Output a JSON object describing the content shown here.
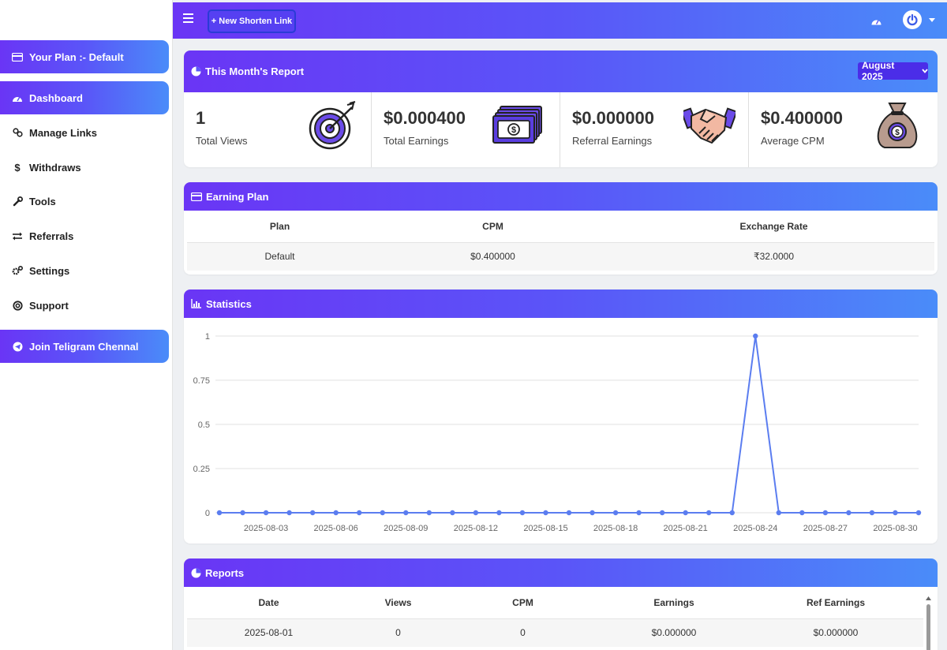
{
  "sidebar": {
    "plan_label": "Your Plan :- Default",
    "items": [
      {
        "label": "Dashboard",
        "icon": "gauge-icon",
        "active": true
      },
      {
        "label": "Manage Links",
        "icon": "link-icon"
      },
      {
        "label": "Withdraws",
        "icon": "dollar-icon"
      },
      {
        "label": "Tools",
        "icon": "wrench-icon"
      },
      {
        "label": "Referrals",
        "icon": "exchange-icon"
      },
      {
        "label": "Settings",
        "icon": "gears-icon"
      },
      {
        "label": "Support",
        "icon": "lifebuoy-icon"
      }
    ],
    "telegram_label": "Join Teligram Chennal"
  },
  "topbar": {
    "new_link_label": "+ New Shorten Link"
  },
  "report": {
    "title": "This Month's Report",
    "month": "August 2025",
    "stats": [
      {
        "value": "1",
        "label": "Total Views",
        "icon": "target-icon"
      },
      {
        "value": "$0.000400",
        "label": "Total Earnings",
        "icon": "cash-stack-icon"
      },
      {
        "value": "$0.000000",
        "label": "Referral Earnings",
        "icon": "handshake-icon"
      },
      {
        "value": "$0.400000",
        "label": "Average CPM",
        "icon": "money-bag-icon"
      }
    ]
  },
  "earning_plan": {
    "title": "Earning Plan",
    "headers": [
      "Plan",
      "CPM",
      "Exchange Rate"
    ],
    "rows": [
      [
        "Default",
        "$0.400000",
        "₹32.0000"
      ]
    ]
  },
  "statistics": {
    "title": "Statistics"
  },
  "chart_data": {
    "type": "line",
    "title": "",
    "xlabel": "",
    "ylabel": "",
    "ylim": [
      0,
      1
    ],
    "yticks": [
      "0",
      "0.25",
      "0.5",
      "0.75",
      "1"
    ],
    "x": [
      "2025-08-01",
      "2025-08-02",
      "2025-08-03",
      "2025-08-04",
      "2025-08-05",
      "2025-08-06",
      "2025-08-07",
      "2025-08-08",
      "2025-08-09",
      "2025-08-10",
      "2025-08-11",
      "2025-08-12",
      "2025-08-13",
      "2025-08-14",
      "2025-08-15",
      "2025-08-16",
      "2025-08-17",
      "2025-08-18",
      "2025-08-19",
      "2025-08-20",
      "2025-08-21",
      "2025-08-22",
      "2025-08-23",
      "2025-08-24",
      "2025-08-25",
      "2025-08-26",
      "2025-08-27",
      "2025-08-28",
      "2025-08-29",
      "2025-08-30",
      "2025-08-31"
    ],
    "xtick_labels": [
      "2025-08-03",
      "2025-08-06",
      "2025-08-09",
      "2025-08-12",
      "2025-08-15",
      "2025-08-18",
      "2025-08-21",
      "2025-08-24",
      "2025-08-27",
      "2025-08-30"
    ],
    "series": [
      {
        "values": [
          0,
          0,
          0,
          0,
          0,
          0,
          0,
          0,
          0,
          0,
          0,
          0,
          0,
          0,
          0,
          0,
          0,
          0,
          0,
          0,
          0,
          0,
          0,
          1,
          0,
          0,
          0,
          0,
          0,
          0,
          0
        ]
      }
    ],
    "color": "#5b7df0",
    "grid": true
  },
  "reports": {
    "title": "Reports",
    "headers": [
      "Date",
      "Views",
      "CPM",
      "Earnings",
      "Ref Earnings"
    ],
    "rows": [
      [
        "2025-08-01",
        "0",
        "0",
        "$0.000000",
        "$0.000000"
      ]
    ]
  }
}
